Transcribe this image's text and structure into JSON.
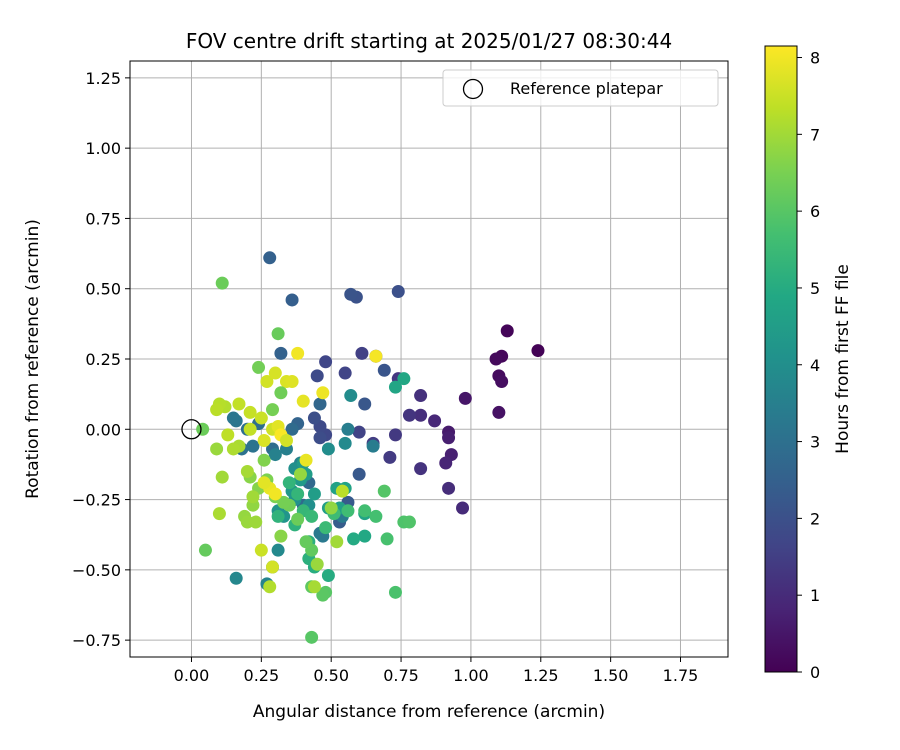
{
  "chart_data": {
    "type": "scatter",
    "title": "FOV centre drift starting at 2025/01/27 08:30:44",
    "xlabel": "Angular distance from reference (arcmin)",
    "ylabel": "Rotation from reference (arcmin)",
    "xlim": [
      -0.22,
      1.92
    ],
    "ylim": [
      -0.81,
      1.31
    ],
    "x_ticks": [
      0.0,
      0.25,
      0.5,
      0.75,
      1.0,
      1.25,
      1.5,
      1.75
    ],
    "x_tick_labels": [
      "0.00",
      "0.25",
      "0.50",
      "0.75",
      "1.00",
      "1.25",
      "1.50",
      "1.75"
    ],
    "y_ticks": [
      -0.75,
      -0.5,
      -0.25,
      0.0,
      0.25,
      0.5,
      0.75,
      1.0,
      1.25
    ],
    "y_tick_labels": [
      "−0.75",
      "−0.50",
      "−0.25",
      "0.00",
      "0.25",
      "0.50",
      "0.75",
      "1.00",
      "1.25"
    ],
    "grid": true,
    "legend": {
      "position": "top-right",
      "entries": [
        {
          "label": "Reference platepar",
          "marker": "open-circle"
        }
      ]
    },
    "reference_point": {
      "x": 0.0,
      "y": 0.0
    },
    "colorbar": {
      "label": "Hours from first FF file",
      "colormap": "viridis",
      "range": [
        0,
        8.15
      ],
      "ticks": [
        0,
        1,
        2,
        3,
        4,
        5,
        6,
        7,
        8
      ],
      "tick_labels": [
        "0",
        "1",
        "2",
        "3",
        "4",
        "5",
        "6",
        "7",
        "8"
      ]
    },
    "series": [
      {
        "points": [
          [
            1.24,
            0.28,
            0.05
          ],
          [
            1.13,
            0.35,
            0.1
          ],
          [
            1.11,
            0.26,
            0.15
          ],
          [
            1.09,
            0.25,
            0.2
          ],
          [
            1.1,
            0.19,
            0.25
          ],
          [
            1.11,
            0.17,
            0.3
          ],
          [
            1.1,
            0.06,
            0.4
          ],
          [
            0.98,
            0.11,
            0.5
          ],
          [
            0.92,
            -0.01,
            0.6
          ],
          [
            0.92,
            -0.03,
            0.7
          ],
          [
            0.93,
            -0.09,
            0.75
          ],
          [
            0.91,
            -0.12,
            0.85
          ],
          [
            0.87,
            0.03,
            0.9
          ],
          [
            0.97,
            -0.28,
            1.0
          ],
          [
            0.92,
            -0.21,
            1.05
          ],
          [
            0.82,
            0.05,
            1.1
          ],
          [
            0.82,
            0.12,
            1.15
          ],
          [
            0.82,
            -0.14,
            1.2
          ],
          [
            0.78,
            0.05,
            1.25
          ],
          [
            0.74,
            0.18,
            1.3
          ],
          [
            0.73,
            -0.02,
            1.35
          ],
          [
            0.71,
            -0.1,
            1.4
          ],
          [
            0.65,
            -0.05,
            1.45
          ],
          [
            0.66,
            0.26,
            1.5
          ],
          [
            0.61,
            0.27,
            1.55
          ],
          [
            0.6,
            -0.01,
            1.6
          ],
          [
            0.55,
            0.2,
            1.65
          ],
          [
            0.48,
            0.24,
            1.7
          ],
          [
            0.48,
            -0.02,
            1.75
          ],
          [
            0.46,
            0.01,
            1.8
          ],
          [
            0.45,
            0.19,
            1.85
          ],
          [
            0.46,
            -0.03,
            1.9
          ],
          [
            0.44,
            0.04,
            1.95
          ],
          [
            0.74,
            0.49,
            2.0
          ],
          [
            0.59,
            0.47,
            2.05
          ],
          [
            0.57,
            0.48,
            2.1
          ],
          [
            0.69,
            0.21,
            2.15
          ],
          [
            0.62,
            0.09,
            2.2
          ],
          [
            0.6,
            -0.16,
            2.25
          ],
          [
            0.56,
            -0.26,
            2.3
          ],
          [
            0.53,
            -0.33,
            2.35
          ],
          [
            0.36,
            0.46,
            2.45
          ],
          [
            0.28,
            0.61,
            2.5
          ],
          [
            0.32,
            0.27,
            2.55
          ],
          [
            0.38,
            0.02,
            2.6
          ],
          [
            0.46,
            0.09,
            2.7
          ],
          [
            0.42,
            -0.19,
            2.75
          ],
          [
            0.4,
            -0.27,
            2.8
          ],
          [
            0.36,
            0.0,
            2.85
          ],
          [
            0.29,
            -0.07,
            2.9
          ],
          [
            0.24,
            0.02,
            2.95
          ],
          [
            0.2,
            0.0,
            3.0
          ],
          [
            0.18,
            -0.07,
            3.05
          ],
          [
            0.22,
            -0.06,
            3.1
          ],
          [
            0.16,
            0.03,
            3.15
          ],
          [
            0.15,
            0.04,
            3.2
          ],
          [
            0.46,
            -0.37,
            3.25
          ],
          [
            0.47,
            -0.38,
            3.3
          ],
          [
            0.54,
            -0.31,
            3.35
          ],
          [
            0.65,
            -0.06,
            3.4
          ],
          [
            0.56,
            0.0,
            3.45
          ],
          [
            0.34,
            -0.07,
            3.5
          ],
          [
            0.3,
            -0.09,
            3.55
          ],
          [
            0.39,
            -0.12,
            3.6
          ],
          [
            0.27,
            -0.55,
            3.65
          ],
          [
            0.29,
            -0.49,
            3.7
          ],
          [
            0.16,
            -0.53,
            3.75
          ],
          [
            0.31,
            -0.43,
            3.8
          ],
          [
            0.55,
            -0.05,
            3.85
          ],
          [
            0.57,
            0.12,
            3.9
          ],
          [
            0.49,
            -0.07,
            3.95
          ],
          [
            0.42,
            -0.27,
            4.0
          ],
          [
            0.37,
            -0.14,
            4.05
          ],
          [
            0.37,
            -0.25,
            4.1
          ],
          [
            0.31,
            -0.29,
            4.15
          ],
          [
            0.33,
            -0.31,
            4.2
          ],
          [
            0.36,
            -0.22,
            4.3
          ],
          [
            0.4,
            -0.12,
            4.35
          ],
          [
            0.39,
            -0.18,
            4.4
          ],
          [
            0.41,
            -0.16,
            4.45
          ],
          [
            0.44,
            -0.23,
            4.5
          ],
          [
            0.49,
            -0.28,
            4.55
          ],
          [
            0.53,
            -0.28,
            4.6
          ],
          [
            0.52,
            -0.21,
            4.65
          ],
          [
            0.55,
            -0.21,
            4.7
          ],
          [
            0.62,
            -0.3,
            4.75
          ],
          [
            0.73,
            0.15,
            4.8
          ],
          [
            0.76,
            0.18,
            4.85
          ],
          [
            0.62,
            -0.38,
            4.9
          ],
          [
            0.58,
            -0.39,
            4.95
          ],
          [
            0.49,
            -0.52,
            5.0
          ],
          [
            0.44,
            -0.49,
            5.05
          ],
          [
            0.42,
            -0.4,
            5.1
          ],
          [
            0.42,
            -0.46,
            5.15
          ],
          [
            0.37,
            -0.34,
            5.2
          ],
          [
            0.31,
            -0.31,
            5.25
          ],
          [
            0.35,
            -0.19,
            5.3
          ],
          [
            0.38,
            -0.23,
            5.35
          ],
          [
            0.4,
            -0.29,
            5.4
          ],
          [
            0.43,
            -0.31,
            5.45
          ],
          [
            0.48,
            -0.35,
            5.5
          ],
          [
            0.51,
            -0.3,
            5.55
          ],
          [
            0.56,
            -0.29,
            5.6
          ],
          [
            0.62,
            -0.29,
            5.65
          ],
          [
            0.66,
            -0.31,
            5.7
          ],
          [
            0.7,
            -0.39,
            5.75
          ],
          [
            0.73,
            -0.58,
            5.8
          ],
          [
            0.76,
            -0.33,
            5.85
          ],
          [
            0.78,
            -0.33,
            5.9
          ],
          [
            0.69,
            -0.22,
            5.95
          ],
          [
            0.48,
            -0.58,
            6.0
          ],
          [
            0.47,
            -0.59,
            6.05
          ],
          [
            0.43,
            -0.56,
            6.1
          ],
          [
            0.43,
            -0.43,
            6.15
          ],
          [
            0.41,
            -0.4,
            6.2
          ],
          [
            0.38,
            -0.32,
            6.3
          ],
          [
            0.35,
            -0.27,
            6.4
          ],
          [
            0.33,
            -0.26,
            6.45
          ],
          [
            0.3,
            -0.24,
            6.5
          ],
          [
            0.27,
            -0.18,
            6.55
          ],
          [
            0.26,
            -0.11,
            6.6
          ],
          [
            0.24,
            -0.21,
            6.65
          ],
          [
            0.21,
            -0.17,
            6.7
          ],
          [
            0.22,
            -0.27,
            6.8
          ],
          [
            0.19,
            -0.31,
            6.85
          ],
          [
            0.2,
            -0.33,
            6.9
          ],
          [
            0.23,
            -0.33,
            6.95
          ],
          [
            0.22,
            -0.24,
            7.0
          ],
          [
            0.2,
            -0.15,
            7.05
          ],
          [
            0.17,
            -0.06,
            7.1
          ],
          [
            0.15,
            -0.07,
            7.15
          ],
          [
            0.12,
            0.08,
            7.2
          ],
          [
            0.1,
            0.09,
            7.25
          ],
          [
            0.09,
            0.07,
            7.3
          ],
          [
            0.13,
            -0.02,
            7.35
          ],
          [
            0.17,
            0.09,
            7.4
          ],
          [
            0.21,
            0.06,
            7.45
          ],
          [
            0.25,
            0.04,
            7.5
          ],
          [
            0.29,
            0.0,
            7.55
          ],
          [
            0.27,
            0.17,
            7.6
          ],
          [
            0.3,
            0.2,
            7.65
          ],
          [
            0.34,
            0.17,
            7.7
          ],
          [
            0.36,
            0.17,
            7.75
          ],
          [
            0.31,
            0.01,
            7.8
          ],
          [
            0.4,
            0.1,
            7.85
          ],
          [
            0.41,
            -0.11,
            7.9
          ],
          [
            0.47,
            0.13,
            7.95
          ],
          [
            0.38,
            0.27,
            8.0
          ],
          [
            0.66,
            0.26,
            8.05
          ],
          [
            0.32,
            -0.02,
            8.1
          ],
          [
            0.25,
            -0.43,
            7.5
          ],
          [
            0.29,
            -0.49,
            7.6
          ],
          [
            0.43,
            -0.74,
            6.0
          ],
          [
            0.05,
            -0.43,
            6.2
          ],
          [
            0.11,
            0.52,
            6.3
          ],
          [
            0.31,
            0.34,
            6.25
          ],
          [
            0.32,
            0.13,
            6.35
          ],
          [
            0.24,
            0.22,
            6.4
          ],
          [
            0.29,
            0.07,
            6.45
          ],
          [
            0.54,
            -0.22,
            7.3
          ],
          [
            0.52,
            -0.4,
            7.0
          ],
          [
            0.5,
            -0.28,
            6.8
          ],
          [
            0.45,
            -0.48,
            6.9
          ],
          [
            0.44,
            -0.56,
            7.05
          ],
          [
            0.28,
            -0.56,
            7.2
          ],
          [
            0.1,
            -0.3,
            7.1
          ],
          [
            0.11,
            -0.17,
            7.0
          ],
          [
            0.09,
            -0.07,
            6.9
          ],
          [
            0.04,
            0.0,
            6.3
          ],
          [
            0.32,
            -0.38,
            6.7
          ],
          [
            0.39,
            -0.16,
            6.85
          ],
          [
            0.34,
            -0.04,
            7.6
          ],
          [
            0.26,
            -0.04,
            7.7
          ],
          [
            0.21,
            0.0,
            7.4
          ],
          [
            0.28,
            -0.21,
            7.9
          ],
          [
            0.3,
            -0.23,
            8.0
          ],
          [
            0.26,
            -0.19,
            7.8
          ]
        ]
      }
    ]
  }
}
